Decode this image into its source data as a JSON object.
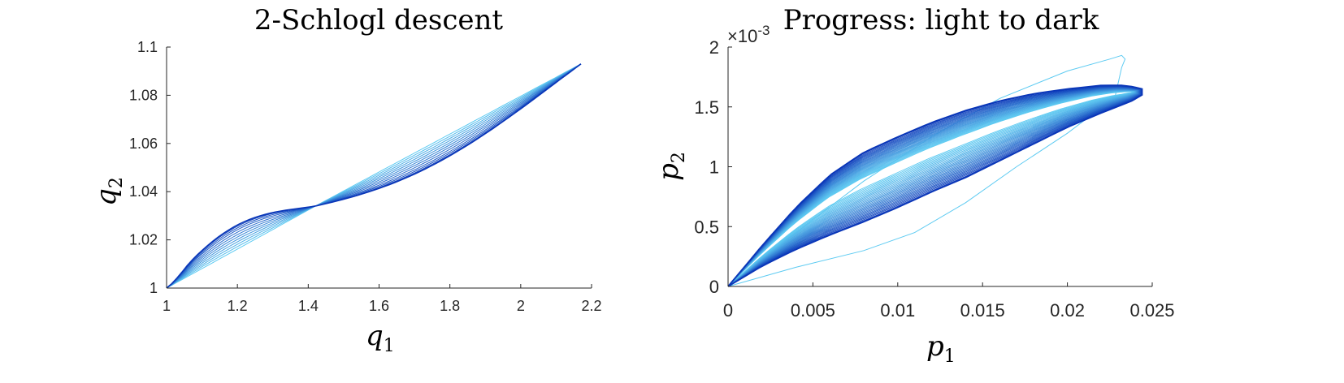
{
  "chart_data": [
    {
      "type": "line",
      "title": "2-Schlogl descent",
      "xlabel": "q",
      "xlabel_sub": "1",
      "ylabel": "q",
      "ylabel_sub": "2",
      "xlim": [
        1,
        2.2
      ],
      "ylim": [
        1,
        1.1
      ],
      "xticks": [
        "1",
        "1.2",
        "1.4",
        "1.6",
        "1.8",
        "2",
        "2.2"
      ],
      "yticks": [
        "1",
        "1.02",
        "1.04",
        "1.06",
        "1.08",
        "1.1"
      ],
      "grid": false,
      "color_progression": "light to dark",
      "color_light": "#5ecbf2",
      "color_dark": "#0a36b8",
      "start_point": [
        1,
        1
      ],
      "end_point": [
        2.17,
        1.093
      ],
      "crossing_point": [
        1.42,
        1.034
      ],
      "series_count": 12,
      "series_bend_factors": [
        0.0,
        0.1,
        0.2,
        0.3,
        0.4,
        0.5,
        0.6,
        0.7,
        0.8,
        0.88,
        0.95,
        1.0
      ]
    },
    {
      "type": "line",
      "title": "Progress: light to dark",
      "xlabel": "p",
      "xlabel_sub": "1",
      "ylabel": "p",
      "ylabel_sub": "2",
      "xlim": [
        0,
        0.025
      ],
      "ylim": [
        0,
        0.002
      ],
      "xticks": [
        "0",
        "0.005",
        "0.01",
        "0.015",
        "0.02",
        "0.025"
      ],
      "yticks": [
        "0",
        "0.5",
        "1",
        "1.5",
        "2"
      ],
      "exponent_base": "×10",
      "exponent_power": "-3",
      "grid": false,
      "color_progression": "light to dark",
      "color_light": "#5ecbf2",
      "color_dark": "#0a36b8",
      "final_loop": {
        "upper": [
          [
            0,
            0
          ],
          [
            0.002,
            0.00034
          ],
          [
            0.004,
            0.00066
          ],
          [
            0.006,
            0.00093
          ],
          [
            0.008,
            0.00112
          ],
          [
            0.01,
            0.00125
          ],
          [
            0.012,
            0.00137
          ],
          [
            0.014,
            0.00147
          ],
          [
            0.016,
            0.00155
          ],
          [
            0.018,
            0.00161
          ],
          [
            0.02,
            0.00165
          ],
          [
            0.022,
            0.00168
          ],
          [
            0.0235,
            0.00168
          ],
          [
            0.0244,
            0.00165
          ]
        ],
        "lower": [
          [
            0,
            0
          ],
          [
            0.002,
            0.00017
          ],
          [
            0.004,
            0.00031
          ],
          [
            0.006,
            0.00043
          ],
          [
            0.008,
            0.00054
          ],
          [
            0.01,
            0.00066
          ],
          [
            0.012,
            0.00079
          ],
          [
            0.014,
            0.00091
          ],
          [
            0.016,
            0.00105
          ],
          [
            0.018,
            0.00119
          ],
          [
            0.02,
            0.00133
          ],
          [
            0.022,
            0.00145
          ],
          [
            0.0238,
            0.00155
          ],
          [
            0.0244,
            0.0016
          ]
        ]
      },
      "outlier_loop": {
        "upper": [
          [
            0,
            0
          ],
          [
            0.004,
            0.00045
          ],
          [
            0.008,
            0.00088
          ],
          [
            0.012,
            0.00125
          ],
          [
            0.016,
            0.00157
          ],
          [
            0.02,
            0.0018
          ],
          [
            0.0225,
            0.0019
          ],
          [
            0.0232,
            0.00193
          ],
          [
            0.0234,
            0.0019
          ],
          [
            0.0232,
            0.00183
          ]
        ],
        "lower": [
          [
            0,
            0
          ],
          [
            0.004,
            0.00016
          ],
          [
            0.008,
            0.0003
          ],
          [
            0.011,
            0.00045
          ],
          [
            0.014,
            0.0007
          ],
          [
            0.017,
            0.001
          ],
          [
            0.02,
            0.00128
          ],
          [
            0.0228,
            0.00158
          ],
          [
            0.0232,
            0.00183
          ]
        ]
      },
      "series_count": 30
    }
  ]
}
